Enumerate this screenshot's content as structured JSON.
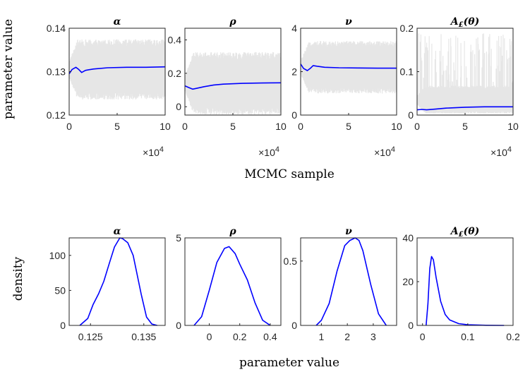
{
  "chart_data": {
    "type": "line",
    "colors": {
      "trace": "#e6e6e6",
      "line": "#0000ff",
      "axis": "#262626"
    },
    "row1": {
      "xlabel": "MCMC sample",
      "ylabel": "parameter value",
      "x_exponent": "×10",
      "x_exponent_power": "4",
      "panels": [
        {
          "title": "α",
          "xlim": [
            0,
            10
          ],
          "ylim": [
            0.12,
            0.14
          ],
          "xticks": [
            0,
            5,
            10
          ],
          "xtick_labels": [
            "0",
            "5",
            "10"
          ],
          "yticks": [
            0.12,
            0.13,
            0.14
          ],
          "ytick_labels": [
            "0.12",
            "0.13",
            "0.14"
          ],
          "trace_band": {
            "center": 0.1305,
            "halfwidth_start": 0.0018,
            "halfwidth": 0.0063
          },
          "running_mean": {
            "x": [
              0,
              0.3,
              0.7,
              1.0,
              1.3,
              1.7,
              2.5,
              4,
              6,
              8,
              10
            ],
            "y": [
              0.1295,
              0.1305,
              0.131,
              0.1305,
              0.1298,
              0.1303,
              0.1306,
              0.1309,
              0.131,
              0.131,
              0.1311
            ]
          }
        },
        {
          "title": "ρ",
          "xlim": [
            0,
            10
          ],
          "ylim": [
            -0.05,
            0.47
          ],
          "xticks": [
            0,
            5,
            10
          ],
          "xtick_labels": [
            "0",
            "5",
            "10"
          ],
          "yticks": [
            0,
            0.2,
            0.4
          ],
          "ytick_labels": [
            "0",
            "0.2",
            "0.4"
          ],
          "trace_band": {
            "center": 0.14,
            "halfwidth_start": 0.04,
            "halfwidth": 0.17
          },
          "running_mean": {
            "x": [
              0,
              0.4,
              0.8,
              1.2,
              2,
              3,
              4,
              6,
              8,
              10
            ],
            "y": [
              0.125,
              0.115,
              0.105,
              0.11,
              0.12,
              0.13,
              0.135,
              0.14,
              0.142,
              0.143
            ]
          }
        },
        {
          "title": "ν",
          "xlim": [
            0,
            10
          ],
          "ylim": [
            0,
            4
          ],
          "xticks": [
            0,
            5,
            10
          ],
          "xtick_labels": [
            "0",
            "5",
            "10"
          ],
          "yticks": [
            0,
            2,
            4
          ],
          "ytick_labels": [
            "0",
            "2",
            "4"
          ],
          "trace_band": {
            "center": 2.2,
            "halfwidth_start": 0.3,
            "halfwidth": 1.1
          },
          "running_mean": {
            "x": [
              0,
              0.3,
              0.7,
              1.0,
              1.3,
              1.7,
              2.5,
              4,
              6,
              8,
              10
            ],
            "y": [
              2.35,
              2.15,
              2.05,
              2.15,
              2.28,
              2.25,
              2.2,
              2.18,
              2.17,
              2.16,
              2.16
            ]
          }
        },
        {
          "title": "A£(θ)",
          "xlim": [
            0,
            10
          ],
          "ylim": [
            0,
            0.2
          ],
          "xticks": [
            0,
            5,
            10
          ],
          "xtick_labels": [
            "0",
            "5",
            "10"
          ],
          "yticks": [
            0,
            0.1,
            0.2
          ],
          "ytick_labels": [
            "0",
            "0.1",
            "0.2"
          ],
          "trace_band": {
            "center": 0.035,
            "halfwidth_start": 0.01,
            "halfwidth": 0.03,
            "spikes_to": 0.19
          },
          "running_mean": {
            "x": [
              0,
              0.5,
              1,
              2,
              3,
              5,
              7,
              10
            ],
            "y": [
              0.012,
              0.013,
              0.012,
              0.014,
              0.016,
              0.018,
              0.019,
              0.019
            ]
          }
        }
      ]
    },
    "row2": {
      "xlabel": "parameter value",
      "ylabel": "density",
      "panels": [
        {
          "title": "α",
          "xlim": [
            0.121,
            0.139
          ],
          "ylim": [
            0,
            125
          ],
          "xticks": [
            0.125,
            0.135
          ],
          "xtick_labels": [
            "0.125",
            "0.135"
          ],
          "yticks": [
            0,
            50,
            100
          ],
          "ytick_labels": [
            "0",
            "50",
            "100"
          ],
          "density": {
            "x": [
              0.123,
              0.1245,
              0.1255,
              0.1265,
              0.1275,
              0.1285,
              0.1295,
              0.1305,
              0.131,
              0.132,
              0.133,
              0.1335,
              0.1345,
              0.1355,
              0.1365,
              0.1375
            ],
            "y": [
              0,
              10,
              30,
              45,
              63,
              88,
              112,
              125,
              124,
              118,
              100,
              82,
              45,
              12,
              2,
              0
            ]
          }
        },
        {
          "title": "ρ",
          "xlim": [
            -0.16,
            0.47
          ],
          "ylim": [
            0,
            5
          ],
          "xticks": [
            0,
            0.2,
            0.4
          ],
          "xtick_labels": [
            "0",
            "0.2",
            "0.4"
          ],
          "yticks": [
            0,
            5
          ],
          "ytick_labels": [
            "0",
            "5"
          ],
          "density": {
            "x": [
              -0.1,
              -0.05,
              0,
              0.05,
              0.1,
              0.13,
              0.17,
              0.2,
              0.25,
              0.3,
              0.35,
              0.4
            ],
            "y": [
              0,
              0.5,
              2.0,
              3.6,
              4.4,
              4.5,
              4.1,
              3.5,
              2.6,
              1.3,
              0.3,
              0
            ]
          }
        },
        {
          "title": "ν",
          "xlim": [
            0.2,
            3.9
          ],
          "ylim": [
            0,
            0.68
          ],
          "xticks": [
            1,
            2,
            3
          ],
          "xtick_labels": [
            "1",
            "2",
            "3"
          ],
          "yticks": [
            0,
            0.5
          ],
          "ytick_labels": [
            "0",
            "0.5"
          ],
          "density": {
            "x": [
              0.8,
              1.0,
              1.3,
              1.6,
              1.9,
              2.1,
              2.3,
              2.45,
              2.6,
              2.9,
              3.2,
              3.5
            ],
            "y": [
              0,
              0.04,
              0.17,
              0.42,
              0.62,
              0.66,
              0.68,
              0.66,
              0.58,
              0.32,
              0.09,
              0
            ]
          }
        },
        {
          "title": "A£(θ)",
          "xlim": [
            -0.012,
            0.2
          ],
          "ylim": [
            0,
            40
          ],
          "xticks": [
            0,
            0.1,
            0.2
          ],
          "xtick_labels": [
            "0",
            "0.1",
            "0.2"
          ],
          "yticks": [
            0,
            20,
            40
          ],
          "ytick_labels": [
            "0",
            "20",
            "40"
          ],
          "density": {
            "x": [
              0.008,
              0.012,
              0.016,
              0.02,
              0.024,
              0.03,
              0.04,
              0.05,
              0.06,
              0.08,
              0.1,
              0.14,
              0.18
            ],
            "y": [
              0,
              10,
              26,
              31.5,
              30,
              22,
              11,
              5,
              2.5,
              0.8,
              0.3,
              0.05,
              0
            ]
          }
        }
      ]
    }
  }
}
